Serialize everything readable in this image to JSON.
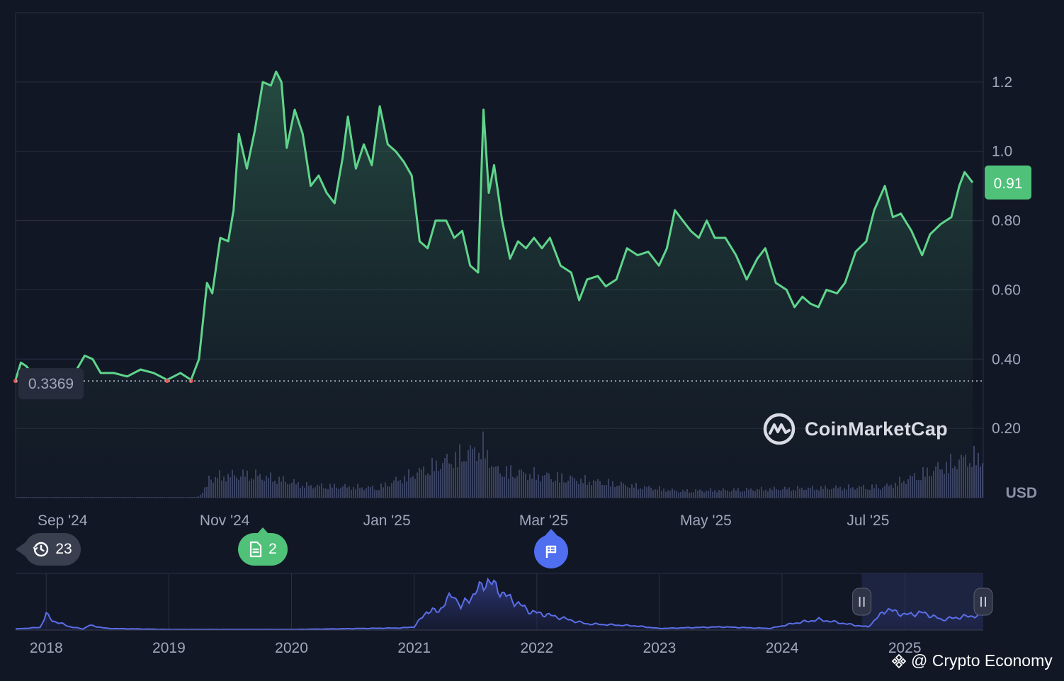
{
  "chart_data": {
    "type": "area",
    "currency": "USD",
    "y_ticks": [
      "0.20",
      "0.40",
      "0.60",
      "0.80",
      "1.0",
      "1.2"
    ],
    "y_tick_values": [
      0.2,
      0.4,
      0.6,
      0.8,
      1.0,
      1.2
    ],
    "ylim": [
      0.0,
      1.4
    ],
    "x_ticks": [
      "Sep '24",
      "Nov '24",
      "Jan '25",
      "Mar '25",
      "May '25",
      "Jul '25"
    ],
    "x_tick_dates": [
      "2024-09-01",
      "2024-11-01",
      "2025-01-01",
      "2025-03-01",
      "2025-05-01",
      "2025-07-01"
    ],
    "xlim": [
      "2024-08-25",
      "2025-08-24"
    ],
    "current_price_label": "0.91",
    "reference_price_label": "0.3369",
    "reference_price": 0.3369,
    "series": [
      {
        "values": [
          [
            "2024-08-25",
            0.34
          ],
          [
            "2024-08-27",
            0.39
          ],
          [
            "2024-08-29",
            0.38
          ],
          [
            "2024-09-01",
            0.35
          ],
          [
            "2024-09-05",
            0.36
          ],
          [
            "2024-09-09",
            0.34
          ],
          [
            "2024-09-13",
            0.35
          ],
          [
            "2024-09-17",
            0.37
          ],
          [
            "2024-09-20",
            0.41
          ],
          [
            "2024-09-23",
            0.4
          ],
          [
            "2024-09-26",
            0.36
          ],
          [
            "2024-10-01",
            0.36
          ],
          [
            "2024-10-06",
            0.35
          ],
          [
            "2024-10-11",
            0.37
          ],
          [
            "2024-10-16",
            0.36
          ],
          [
            "2024-10-21",
            0.34
          ],
          [
            "2024-10-26",
            0.36
          ],
          [
            "2024-10-30",
            0.34
          ],
          [
            "2024-11-02",
            0.4
          ],
          [
            "2024-11-05",
            0.62
          ],
          [
            "2024-11-07",
            0.59
          ],
          [
            "2024-11-10",
            0.75
          ],
          [
            "2024-11-13",
            0.74
          ],
          [
            "2024-11-15",
            0.83
          ],
          [
            "2024-11-17",
            1.05
          ],
          [
            "2024-11-20",
            0.95
          ],
          [
            "2024-11-23",
            1.06
          ],
          [
            "2024-11-26",
            1.2
          ],
          [
            "2024-11-29",
            1.19
          ],
          [
            "2024-12-01",
            1.23
          ],
          [
            "2024-12-03",
            1.2
          ],
          [
            "2024-12-05",
            1.01
          ],
          [
            "2024-12-08",
            1.12
          ],
          [
            "2024-12-11",
            1.05
          ],
          [
            "2024-12-14",
            0.9
          ],
          [
            "2024-12-17",
            0.93
          ],
          [
            "2024-12-20",
            0.88
          ],
          [
            "2024-12-23",
            0.85
          ],
          [
            "2024-12-26",
            0.98
          ],
          [
            "2024-12-28",
            1.1
          ],
          [
            "2024-12-31",
            0.95
          ],
          [
            "2025-01-03",
            1.02
          ],
          [
            "2025-01-06",
            0.96
          ],
          [
            "2025-01-09",
            1.13
          ],
          [
            "2025-01-12",
            1.02
          ],
          [
            "2025-01-15",
            1.0
          ],
          [
            "2025-01-18",
            0.97
          ],
          [
            "2025-01-21",
            0.93
          ],
          [
            "2025-01-24",
            0.74
          ],
          [
            "2025-01-27",
            0.72
          ],
          [
            "2025-01-30",
            0.8
          ],
          [
            "2025-02-03",
            0.8
          ],
          [
            "2025-02-06",
            0.75
          ],
          [
            "2025-02-09",
            0.77
          ],
          [
            "2025-02-12",
            0.67
          ],
          [
            "2025-02-15",
            0.65
          ],
          [
            "2025-02-17",
            1.12
          ],
          [
            "2025-02-19",
            0.88
          ],
          [
            "2025-02-21",
            0.96
          ],
          [
            "2025-02-24",
            0.8
          ],
          [
            "2025-02-27",
            0.69
          ],
          [
            "2025-03-02",
            0.74
          ],
          [
            "2025-03-05",
            0.72
          ],
          [
            "2025-03-08",
            0.75
          ],
          [
            "2025-03-11",
            0.72
          ],
          [
            "2025-03-14",
            0.75
          ],
          [
            "2025-03-18",
            0.67
          ],
          [
            "2025-03-22",
            0.65
          ],
          [
            "2025-03-25",
            0.57
          ],
          [
            "2025-03-28",
            0.63
          ],
          [
            "2025-04-01",
            0.64
          ],
          [
            "2025-04-04",
            0.61
          ],
          [
            "2025-04-08",
            0.63
          ],
          [
            "2025-04-12",
            0.72
          ],
          [
            "2025-04-16",
            0.7
          ],
          [
            "2025-04-20",
            0.71
          ],
          [
            "2025-04-24",
            0.67
          ],
          [
            "2025-04-27",
            0.72
          ],
          [
            "2025-04-30",
            0.83
          ],
          [
            "2025-05-03",
            0.8
          ],
          [
            "2025-05-06",
            0.77
          ],
          [
            "2025-05-09",
            0.75
          ],
          [
            "2025-05-12",
            0.8
          ],
          [
            "2025-05-15",
            0.75
          ],
          [
            "2025-05-19",
            0.75
          ],
          [
            "2025-05-23",
            0.7
          ],
          [
            "2025-05-27",
            0.63
          ],
          [
            "2025-05-31",
            0.69
          ],
          [
            "2025-06-03",
            0.72
          ],
          [
            "2025-06-07",
            0.62
          ],
          [
            "2025-06-11",
            0.6
          ],
          [
            "2025-06-14",
            0.55
          ],
          [
            "2025-06-17",
            0.58
          ],
          [
            "2025-06-20",
            0.56
          ],
          [
            "2025-06-23",
            0.55
          ],
          [
            "2025-06-26",
            0.6
          ],
          [
            "2025-06-30",
            0.59
          ],
          [
            "2025-07-03",
            0.62
          ],
          [
            "2025-07-07",
            0.71
          ],
          [
            "2025-07-11",
            0.74
          ],
          [
            "2025-07-14",
            0.83
          ],
          [
            "2025-07-18",
            0.9
          ],
          [
            "2025-07-21",
            0.81
          ],
          [
            "2025-07-24",
            0.82
          ],
          [
            "2025-07-28",
            0.77
          ],
          [
            "2025-08-01",
            0.7
          ],
          [
            "2025-08-04",
            0.76
          ],
          [
            "2025-08-08",
            0.79
          ],
          [
            "2025-08-12",
            0.81
          ],
          [
            "2025-08-15",
            0.9
          ],
          [
            "2025-08-17",
            0.94
          ],
          [
            "2025-08-20",
            0.91
          ]
        ]
      }
    ],
    "volume": [
      [
        "2024-11-05",
        0.35
      ],
      [
        "2024-11-12",
        0.4
      ],
      [
        "2024-11-21",
        0.42
      ],
      [
        "2024-12-01",
        0.34
      ],
      [
        "2024-12-12",
        0.22
      ],
      [
        "2025-01-08",
        0.18
      ],
      [
        "2025-02-17",
        0.92
      ],
      [
        "2025-02-21",
        0.5
      ],
      [
        "2025-05-01",
        0.12
      ],
      [
        "2025-07-18",
        0.2
      ],
      [
        "2025-08-18",
        0.72
      ]
    ],
    "navigator": {
      "x_ticks": [
        "2018",
        "2019",
        "2020",
        "2021",
        "2022",
        "2023",
        "2024",
        "2025"
      ],
      "x_tick_years": [
        2018,
        2019,
        2020,
        2021,
        2022,
        2023,
        2024,
        2025
      ],
      "xlim": [
        2017.75,
        2025.64
      ],
      "selection": [
        2024.65,
        2025.64
      ],
      "values": [
        [
          2017.75,
          0.02
        ],
        [
          2017.95,
          0.05
        ],
        [
          2018.0,
          0.3
        ],
        [
          2018.05,
          0.18
        ],
        [
          2018.2,
          0.06
        ],
        [
          2018.3,
          0.02
        ],
        [
          2018.35,
          0.09
        ],
        [
          2018.5,
          0.03
        ],
        [
          2019.0,
          0.01
        ],
        [
          2020.0,
          0.01
        ],
        [
          2020.9,
          0.04
        ],
        [
          2021.0,
          0.06
        ],
        [
          2021.1,
          0.35
        ],
        [
          2021.2,
          0.37
        ],
        [
          2021.32,
          0.7
        ],
        [
          2021.38,
          0.44
        ],
        [
          2021.6,
          0.95
        ],
        [
          2021.75,
          0.65
        ],
        [
          2021.95,
          0.35
        ],
        [
          2022.15,
          0.26
        ],
        [
          2022.4,
          0.12
        ],
        [
          2022.8,
          0.08
        ],
        [
          2023.0,
          0.03
        ],
        [
          2023.5,
          0.06
        ],
        [
          2023.9,
          0.03
        ],
        [
          2024.1,
          0.13
        ],
        [
          2024.3,
          0.2
        ],
        [
          2024.6,
          0.09
        ],
        [
          2024.7,
          0.06
        ],
        [
          2024.85,
          0.4
        ],
        [
          2025.0,
          0.29
        ],
        [
          2025.15,
          0.33
        ],
        [
          2025.3,
          0.2
        ],
        [
          2025.5,
          0.26
        ],
        [
          2025.64,
          0.28
        ]
      ]
    }
  },
  "badges": {
    "history": "23",
    "news": "2"
  },
  "logo": {
    "name": "CoinMarketCap"
  },
  "watermark": {
    "text": "@ Crypto Economy"
  },
  "colors": {
    "line": "#5fd58b",
    "negative": "#e05656",
    "volume": "#3d4566",
    "navigator_line": "#5b6ee8",
    "background": "#121726",
    "grid": "#2b3042"
  }
}
